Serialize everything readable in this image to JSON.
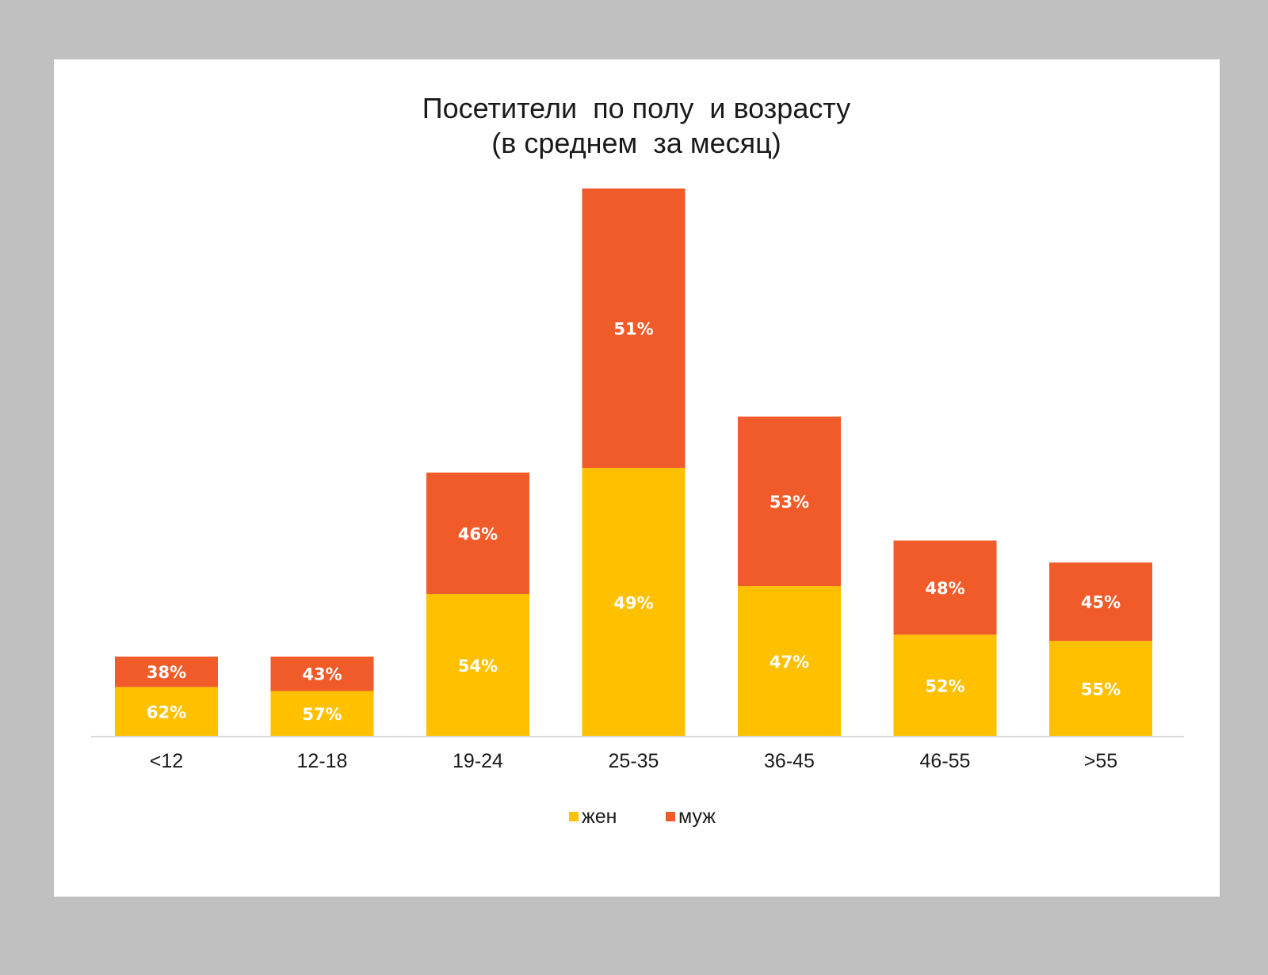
{
  "chart_data": {
    "type": "bar",
    "stacked": true,
    "title_lines": [
      "Посетители  по полу  и возрасту",
      "(в среднем  за месяц)"
    ],
    "categories": [
      "<12",
      "12-18",
      "19-24",
      "25-35",
      "36-45",
      "46-55",
      ">55"
    ],
    "totals": [
      20,
      20,
      66,
      137,
      80,
      49,
      43.5
    ],
    "series": [
      {
        "name": "жен",
        "color": "#ffc000",
        "share_labels": [
          "62%",
          "57%",
          "54%",
          "49%",
          "47%",
          "52%",
          "55%"
        ],
        "share_values": [
          62,
          57,
          54,
          49,
          47,
          52,
          55
        ]
      },
      {
        "name": "муж",
        "color": "#f15a29",
        "share_labels": [
          "38%",
          "43%",
          "46%",
          "51%",
          "53%",
          "48%",
          "45%"
        ],
        "share_values": [
          38,
          43,
          46,
          51,
          53,
          48,
          45
        ]
      }
    ],
    "ylim": [
      0,
      137
    ],
    "y_axis_visible": false,
    "grid": false,
    "legend_position": "bottom"
  }
}
